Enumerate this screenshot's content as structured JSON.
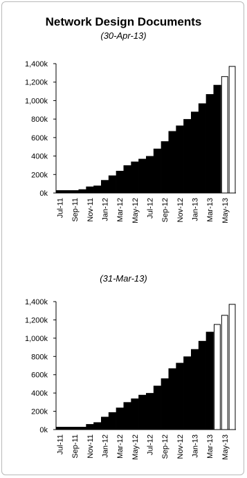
{
  "title": "Network Design Documents",
  "chart_data": [
    {
      "type": "bar",
      "subtitle": "(30-Apr-13)",
      "categories": [
        "Jul-11",
        "Aug-11",
        "Sep-11",
        "Oct-11",
        "Nov-11",
        "Dec-11",
        "Jan-12",
        "Feb-12",
        "Mar-12",
        "Apr-12",
        "May-12",
        "Jun-12",
        "Jul-12",
        "Aug-12",
        "Sep-12",
        "Oct-12",
        "Nov-12",
        "Dec-12",
        "Jan-13",
        "Feb-13",
        "Mar-13",
        "Apr-13",
        "May-13",
        "Jun-13"
      ],
      "x_tick_labels": [
        "Jul-11",
        "Sep-11",
        "Nov-11",
        "Jan-12",
        "Mar-12",
        "May-12",
        "Jul-12",
        "Sep-12",
        "Nov-12",
        "Jan-13",
        "Mar-13",
        "May-13"
      ],
      "values": [
        30,
        30,
        30,
        40,
        70,
        80,
        140,
        190,
        240,
        300,
        340,
        370,
        400,
        480,
        560,
        670,
        730,
        800,
        880,
        970,
        1070,
        1170,
        1260,
        1370
      ],
      "projected_from_index": 22,
      "ylim": [
        0,
        1400
      ],
      "y_ticks": [
        "0k",
        "200k",
        "400k",
        "600k",
        "800k",
        "1,000k",
        "1,200k",
        "1,400k"
      ],
      "colors": {
        "actual": "#000000",
        "projected": "#ffffff",
        "outline": "#000000"
      }
    },
    {
      "type": "bar",
      "subtitle": "(31-Mar-13)",
      "categories": [
        "Jul-11",
        "Aug-11",
        "Sep-11",
        "Oct-11",
        "Nov-11",
        "Dec-11",
        "Jan-12",
        "Feb-12",
        "Mar-12",
        "Apr-12",
        "May-12",
        "Jun-12",
        "Jul-12",
        "Aug-12",
        "Sep-12",
        "Oct-12",
        "Nov-12",
        "Dec-12",
        "Jan-13",
        "Feb-13",
        "Mar-13",
        "Apr-13",
        "May-13",
        "Jun-13"
      ],
      "x_tick_labels": [
        "Jul-11",
        "Sep-11",
        "Nov-11",
        "Jan-12",
        "Mar-12",
        "May-12",
        "Jul-12",
        "Sep-12",
        "Nov-12",
        "Jan-13",
        "Mar-13",
        "May-13"
      ],
      "values": [
        30,
        30,
        30,
        30,
        60,
        80,
        140,
        190,
        240,
        300,
        340,
        380,
        400,
        480,
        560,
        670,
        730,
        800,
        880,
        970,
        1070,
        1150,
        1250,
        1370
      ],
      "projected_from_index": 21,
      "ylim": [
        0,
        1400
      ],
      "y_ticks": [
        "0k",
        "200k",
        "400k",
        "600k",
        "800k",
        "1,000k",
        "1,200k",
        "1,400k"
      ],
      "colors": {
        "actual": "#000000",
        "projected": "#ffffff",
        "outline": "#000000"
      }
    }
  ]
}
